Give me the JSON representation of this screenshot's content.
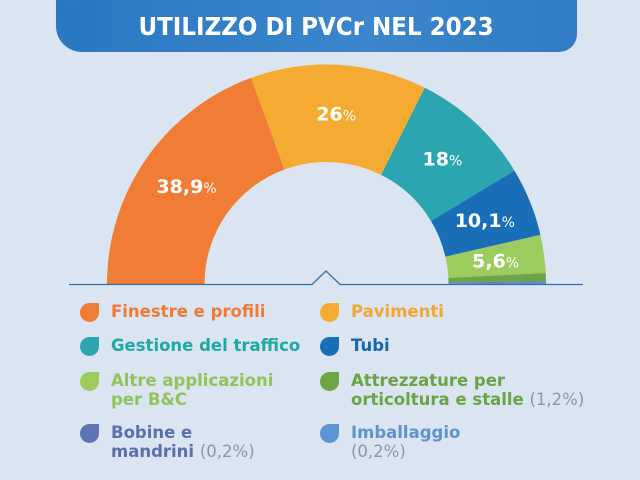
{
  "title": "UTILIZZO DI PVCr NEL 2023",
  "chart_data": {
    "type": "pie",
    "subtype": "semi-donut",
    "title": "UTILIZZO DI PVCr NEL 2023",
    "categories": [
      "Finestre e profili",
      "Pavimenti",
      "Gestione del traffico",
      "Tubi",
      "Altre applicazioni per B&C",
      "Attrezzature per orticoltura e stalle",
      "Bobine e mandrini",
      "Imballaggio"
    ],
    "values": [
      38.9,
      26,
      18,
      10.1,
      5.6,
      1.2,
      0.2,
      0.2
    ],
    "labels": [
      "38,9",
      "26",
      "18",
      "10,1",
      "5,6",
      "",
      "",
      ""
    ],
    "unit": "%",
    "colors": [
      "#f07c36",
      "#f5ab31",
      "#2ba6b1",
      "#1a6db7",
      "#9ccc5e",
      "#6fa446",
      "#5e75b4",
      "#5c95d2"
    ],
    "legend_position": "bottom"
  },
  "legend": [
    {
      "label": "Finestre e profili",
      "extra": "",
      "color": "#f07c36",
      "text_color": "#ef7a35"
    },
    {
      "label": "Pavimenti",
      "extra": "",
      "color": "#f5ab31",
      "text_color": "#f2a733"
    },
    {
      "label": "Gestione del traffico",
      "extra": "",
      "color": "#2ba6b1",
      "text_color": "#1fa9a3"
    },
    {
      "label": "Tubi",
      "extra": "",
      "color": "#1a6db7",
      "text_color": "#1766b0"
    },
    {
      "label_line1": "Altre applicazioni",
      "label_line2": "per B&C",
      "extra": "",
      "color": "#9ccc5e",
      "text_color": "#8ec458"
    },
    {
      "label_line1": "Attrezzature per",
      "label_line2": "orticoltura e stalle",
      "extra": "(1,2%)",
      "color": "#6fa446",
      "text_color": "#6aa444"
    },
    {
      "label_line1": "Bobine e",
      "label_line2": "mandrini",
      "extra": "(0,2%)",
      "color": "#5e75b4",
      "text_color": "#5b6fae"
    },
    {
      "label_line1": "Imballaggio",
      "label_line2": "",
      "extra": "(0,2%)",
      "color": "#5c95d2",
      "text_color": "#5f93cf"
    }
  ]
}
